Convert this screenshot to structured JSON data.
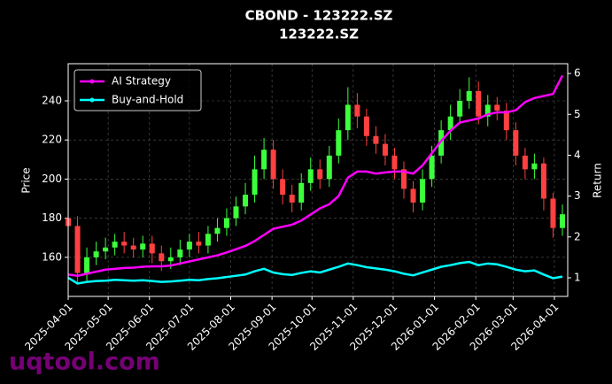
{
  "chart_data": {
    "type": "candlestick",
    "title": "CBOND - 123222.SZ",
    "subtitle": "123222.SZ",
    "ylabel": "Price",
    "y2label": "Return",
    "watermark": "uqtool.com",
    "x": [
      "2025-04-01",
      "2025-04-08",
      "2025-04-15",
      "2025-04-22",
      "2025-04-29",
      "2025-05-06",
      "2025-05-13",
      "2025-05-20",
      "2025-05-27",
      "2025-06-03",
      "2025-06-10",
      "2025-06-17",
      "2025-06-24",
      "2025-07-01",
      "2025-07-08",
      "2025-07-15",
      "2025-07-22",
      "2025-07-29",
      "2025-08-05",
      "2025-08-12",
      "2025-08-19",
      "2025-08-26",
      "2025-09-02",
      "2025-09-09",
      "2025-09-16",
      "2025-09-23",
      "2025-09-30",
      "2025-10-07",
      "2025-10-14",
      "2025-10-21",
      "2025-10-28",
      "2025-11-04",
      "2025-11-11",
      "2025-11-18",
      "2025-11-25",
      "2025-12-02",
      "2025-12-09",
      "2025-12-16",
      "2025-12-23",
      "2025-12-30",
      "2026-01-06",
      "2026-01-13",
      "2026-01-20",
      "2026-01-27",
      "2026-02-03",
      "2026-02-10",
      "2026-02-17",
      "2026-02-24",
      "2026-03-03",
      "2026-03-10",
      "2026-03-17",
      "2026-03-24",
      "2026-03-31",
      "2026-04-07"
    ],
    "open": [
      180,
      176,
      152,
      160,
      163,
      165,
      168,
      166,
      164,
      167,
      162,
      158,
      160,
      164,
      168,
      166,
      172,
      175,
      180,
      186,
      192,
      205,
      215,
      200,
      192,
      188,
      198,
      205,
      200,
      212,
      225,
      238,
      232,
      222,
      218,
      212,
      205,
      195,
      188,
      200,
      212,
      225,
      232,
      240,
      245,
      232,
      238,
      235,
      225,
      212,
      205,
      208,
      190,
      175
    ],
    "high": [
      185,
      181,
      165,
      168,
      170,
      172,
      173,
      170,
      171,
      171,
      166,
      165,
      169,
      172,
      173,
      176,
      180,
      185,
      191,
      198,
      212,
      221,
      220,
      205,
      197,
      203,
      211,
      210,
      217,
      231,
      247,
      244,
      236,
      227,
      223,
      216,
      209,
      199,
      205,
      217,
      230,
      238,
      246,
      252,
      250,
      243,
      242,
      239,
      229,
      216,
      213,
      211,
      193,
      187
    ],
    "low": [
      171,
      147,
      148,
      156,
      159,
      161,
      162,
      160,
      160,
      157,
      153,
      154,
      156,
      160,
      162,
      162,
      168,
      171,
      176,
      182,
      188,
      200,
      195,
      187,
      183,
      184,
      194,
      195,
      196,
      208,
      220,
      226,
      217,
      213,
      207,
      200,
      190,
      183,
      184,
      196,
      208,
      220,
      228,
      236,
      228,
      227,
      230,
      220,
      207,
      200,
      200,
      184,
      170,
      171
    ],
    "close": [
      176,
      152,
      160,
      163,
      165,
      168,
      166,
      164,
      167,
      162,
      158,
      160,
      164,
      168,
      166,
      172,
      175,
      180,
      186,
      192,
      205,
      215,
      200,
      192,
      188,
      198,
      205,
      200,
      212,
      225,
      238,
      232,
      222,
      218,
      212,
      205,
      195,
      188,
      200,
      212,
      225,
      232,
      240,
      245,
      232,
      238,
      235,
      225,
      212,
      205,
      208,
      190,
      175,
      182
    ],
    "up_color": "#3cff3c",
    "down_color": "#ff4040",
    "series": [
      {
        "name": "AI Strategy",
        "color": "#ff00ff",
        "axis": "y2",
        "values": [
          1.08,
          1.05,
          1.1,
          1.15,
          1.2,
          1.22,
          1.24,
          1.25,
          1.27,
          1.28,
          1.28,
          1.3,
          1.35,
          1.4,
          1.45,
          1.5,
          1.55,
          1.62,
          1.7,
          1.78,
          1.9,
          2.05,
          2.2,
          2.25,
          2.3,
          2.4,
          2.55,
          2.7,
          2.8,
          3.0,
          3.45,
          3.6,
          3.6,
          3.55,
          3.58,
          3.6,
          3.6,
          3.55,
          3.75,
          4.05,
          4.35,
          4.6,
          4.8,
          4.85,
          4.9,
          5.0,
          5.05,
          5.05,
          5.1,
          5.3,
          5.4,
          5.45,
          5.5,
          5.95
        ]
      },
      {
        "name": "Buy-and-Hold",
        "color": "#00ffff",
        "axis": "y2",
        "values": [
          1.0,
          0.86,
          0.9,
          0.92,
          0.93,
          0.95,
          0.94,
          0.93,
          0.94,
          0.92,
          0.9,
          0.91,
          0.93,
          0.95,
          0.94,
          0.97,
          0.99,
          1.02,
          1.05,
          1.08,
          1.16,
          1.22,
          1.13,
          1.09,
          1.07,
          1.12,
          1.16,
          1.13,
          1.2,
          1.27,
          1.35,
          1.31,
          1.26,
          1.23,
          1.2,
          1.16,
          1.1,
          1.06,
          1.13,
          1.2,
          1.27,
          1.31,
          1.36,
          1.39,
          1.31,
          1.35,
          1.33,
          1.27,
          1.2,
          1.16,
          1.18,
          1.08,
          0.99,
          1.03
        ]
      }
    ],
    "xlim": [
      "2025-04-01",
      "2026-04-11"
    ],
    "xticks": [
      "2025-04-01",
      "2025-05-01",
      "2025-06-01",
      "2025-07-01",
      "2025-08-01",
      "2025-09-01",
      "2025-10-01",
      "2025-11-01",
      "2025-12-01",
      "2026-01-01",
      "2026-02-01",
      "2026-03-01",
      "2026-04-01"
    ],
    "ylim": [
      140,
      259
    ],
    "yticks": [
      160,
      180,
      200,
      220,
      240
    ],
    "y2lim": [
      0.545,
      6.24
    ],
    "y2ticks": [
      1,
      2,
      3,
      4,
      5,
      6
    ],
    "grid": true,
    "legend": "upper left"
  }
}
